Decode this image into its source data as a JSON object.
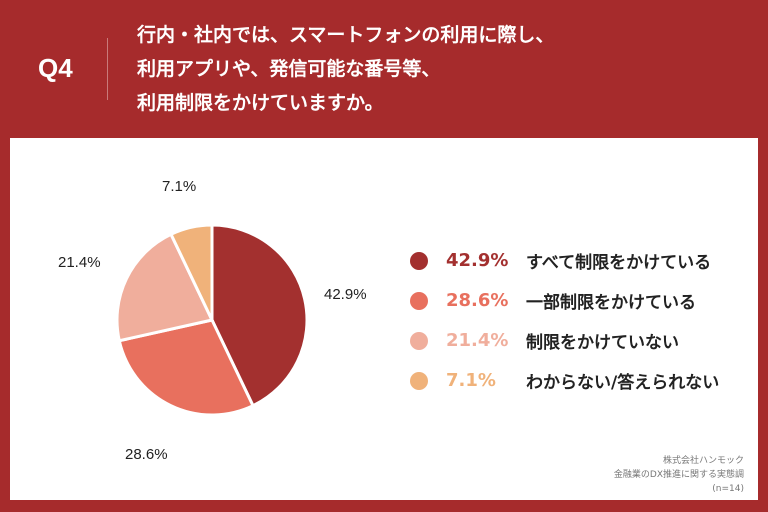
{
  "header": {
    "q": "Q4",
    "title": [
      "行内・社内では、スマートフォンの利用に際し、",
      "利用アプリや、発信可能な番号等、",
      "利用制限をかけていますか。"
    ]
  },
  "chart_data": {
    "type": "pie",
    "categories": [
      "すべて制限をかけている",
      "一部制限をかけている",
      "制限をかけていない",
      "わからない/答えられない"
    ],
    "values": [
      42.9,
      28.6,
      21.4,
      7.1
    ],
    "labels": [
      "42.9%",
      "28.6%",
      "21.4%",
      "7.1%"
    ],
    "colors": [
      "#a3302f",
      "#e8705e",
      "#f0ae9c",
      "#f0b27a"
    ],
    "legend": "right"
  },
  "source": [
    "株式会社ハンモック",
    "金融業のDX推進に関する実態調",
    "(n=14)"
  ]
}
